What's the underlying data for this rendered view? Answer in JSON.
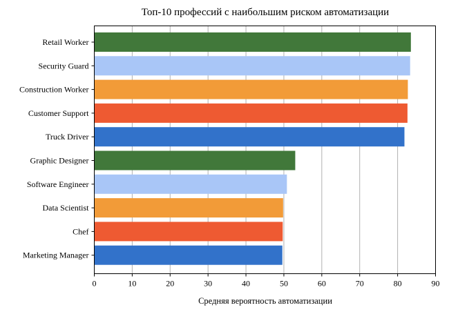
{
  "chart_data": {
    "type": "bar",
    "orientation": "horizontal",
    "title": "Топ-10 профессий с наибольшим риском автоматизации",
    "xlabel": "Средняя вероятность автоматизации",
    "ylabel": "",
    "xlim": [
      0,
      90
    ],
    "xticks": [
      "0",
      "10",
      "20",
      "30",
      "40",
      "50",
      "60",
      "70",
      "80",
      "90"
    ],
    "grid": "x",
    "categories": [
      "Retail Worker",
      "Security Guard",
      "Construction Worker",
      "Customer Support",
      "Truck Driver",
      "Graphic Designer",
      "Software Engineer",
      "Data Scientist",
      "Chef",
      "Marketing Manager"
    ],
    "values": [
      83.5,
      83.3,
      82.7,
      82.6,
      81.8,
      53.0,
      50.8,
      49.8,
      49.7,
      49.6
    ],
    "colors": [
      "#41783a",
      "#a9c6f7",
      "#f29b38",
      "#ee5a32",
      "#3272ca",
      "#41783a",
      "#a9c6f7",
      "#f29b38",
      "#ee5a32",
      "#3272ca"
    ]
  }
}
